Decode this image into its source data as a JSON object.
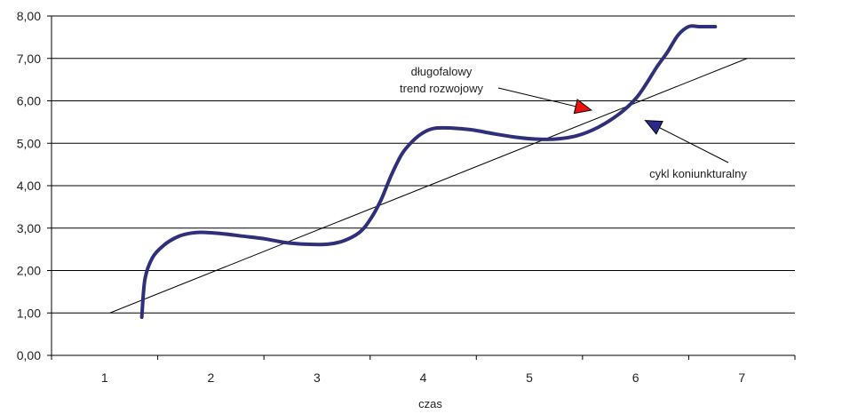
{
  "chart_data": {
    "type": "line",
    "title": "",
    "xlabel": "czas",
    "ylabel": "",
    "xlim": [
      0.5,
      7.5
    ],
    "ylim": [
      0,
      8
    ],
    "y_ticks": [
      "0,00",
      "1,00",
      "2,00",
      "3,00",
      "4,00",
      "5,00",
      "6,00",
      "7,00",
      "8,00"
    ],
    "x_ticks": [
      "1",
      "2",
      "3",
      "4",
      "5",
      "6",
      "7"
    ],
    "grid": "horizontal",
    "legend": "none",
    "series": [
      {
        "style": "trend",
        "color": "#000000",
        "x": [
          1.05,
          7.05
        ],
        "y": [
          1.0,
          7.0
        ]
      },
      {
        "style": "cycle",
        "color": "#2f2f7a",
        "x": [
          1.35,
          1.38,
          1.45,
          1.55,
          1.65,
          1.75,
          1.9,
          2.1,
          2.3,
          2.5,
          2.7,
          2.9,
          3.1,
          3.25,
          3.4,
          3.5,
          3.6,
          3.7,
          3.8,
          3.9,
          4.0,
          4.1,
          4.25,
          4.45,
          4.65,
          4.85,
          5.05,
          5.25,
          5.45,
          5.65,
          5.85,
          6.0,
          6.1,
          6.2,
          6.3,
          6.4,
          6.5,
          6.6,
          6.7,
          6.75
        ],
        "y": [
          0.9,
          1.8,
          2.3,
          2.58,
          2.75,
          2.85,
          2.9,
          2.87,
          2.81,
          2.75,
          2.66,
          2.62,
          2.62,
          2.7,
          2.9,
          3.2,
          3.65,
          4.25,
          4.75,
          5.05,
          5.25,
          5.35,
          5.36,
          5.32,
          5.23,
          5.15,
          5.1,
          5.1,
          5.18,
          5.38,
          5.7,
          6.05,
          6.4,
          6.8,
          7.15,
          7.55,
          7.75,
          7.75,
          7.75,
          7.75
        ]
      }
    ],
    "annotations": [
      {
        "text_lines": [
          "długofalowy",
          "trend rozwojowy"
        ],
        "target": {
          "x": 5.55,
          "y": 5.8
        },
        "arrow_color": "#ee1111"
      },
      {
        "text_lines": [
          "cykl koniunkturalny"
        ],
        "target": {
          "x": 6.12,
          "y": 5.5
        },
        "arrow_color": "#2a2a8e"
      }
    ]
  }
}
